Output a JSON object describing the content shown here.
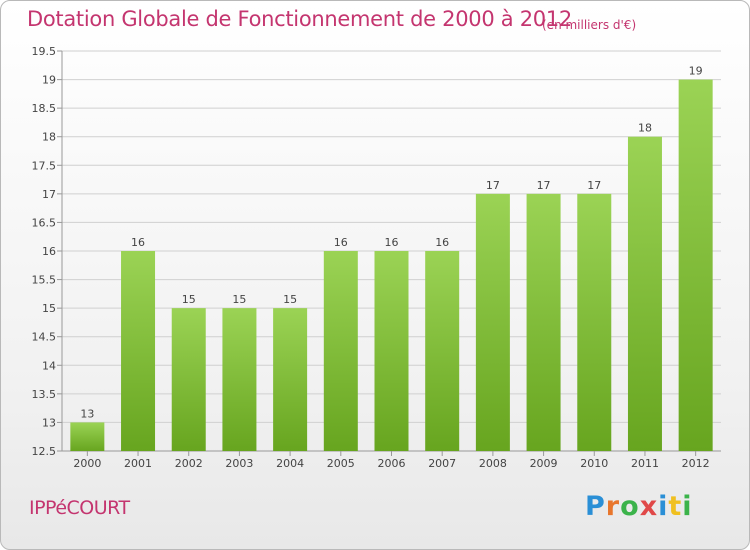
{
  "title": "Dotation Globale de Fonctionnement de 2000 à 2012",
  "unit_note": "(en milliers d'€)",
  "commune": "IPPéCOURT",
  "logo": {
    "text": "Proxiti",
    "letter_colors": [
      "#2a8fd6",
      "#e8762c",
      "#3bb34a",
      "#e04848",
      "#2a8fd6",
      "#f0c020",
      "#3bb34a"
    ]
  },
  "colors": {
    "bar_top": "#9bd355",
    "bar_bottom": "#67a51f",
    "grid": "#d0d0d0",
    "axis": "#999999",
    "title": "#c4356f"
  },
  "chart_data": {
    "type": "bar",
    "categories": [
      "2000",
      "2001",
      "2002",
      "2003",
      "2004",
      "2005",
      "2006",
      "2007",
      "2008",
      "2009",
      "2010",
      "2011",
      "2012"
    ],
    "values": [
      13,
      16,
      15,
      15,
      15,
      16,
      16,
      16,
      17,
      17,
      17,
      18,
      19
    ],
    "value_labels": [
      "13",
      "16",
      "15",
      "15",
      "15",
      "16",
      "16",
      "16",
      "17",
      "17",
      "17",
      "18",
      "19"
    ],
    "yticks": [
      12.5,
      13,
      13.5,
      14,
      14.5,
      15,
      15.5,
      16,
      16.5,
      17,
      17.5,
      18,
      18.5,
      19,
      19.5
    ],
    "ytick_labels": [
      "12.5",
      "13",
      "13.5",
      "14",
      "14.5",
      "15",
      "15.5",
      "16",
      "16.5",
      "17",
      "17.5",
      "18",
      "18.5",
      "19",
      "19.5"
    ],
    "ylim": [
      12.5,
      19.5
    ],
    "grid": true,
    "title": "Dotation Globale de Fonctionnement de 2000 à 2012",
    "xlabel": "",
    "ylabel": ""
  }
}
